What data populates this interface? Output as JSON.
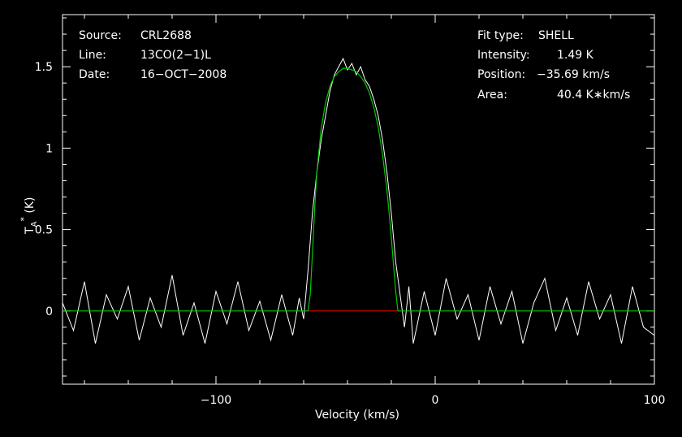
{
  "info_left": {
    "source_label": "Source:",
    "source_value": "CRL2688",
    "line_label": "Line:",
    "line_value": "13CO(2−1)L",
    "date_label": "Date:",
    "date_value": "16−OCT−2008"
  },
  "info_right": {
    "fit_label": "Fit type:",
    "fit_value": "SHELL",
    "intensity_label": "Intensity:",
    "intensity_value": "1.49 K",
    "position_label": "Position:",
    "position_value": "−35.69 km/s",
    "area_label": "Area:",
    "area_value": "40.4 K∗km/s"
  },
  "colors": {
    "spectrum": "#ffffff",
    "fit": "#00c800",
    "baseline": "#e00000",
    "frame": "#ffffff",
    "background": "#000000"
  },
  "chart_data": {
    "type": "line",
    "xlabel": "Velocity (km/s)",
    "ylabel_main": "T",
    "ylabel_sub": "A",
    "ylabel_sup": "*",
    "ylabel_unit": " (K)",
    "xlim": [
      -170,
      100
    ],
    "ylim": [
      -0.45,
      1.82
    ],
    "xticks": [
      -100,
      0,
      100
    ],
    "xtick_labels": [
      "−100",
      "0",
      "100"
    ],
    "yticks": [
      0,
      0.5,
      1,
      1.5
    ],
    "ytick_labels": [
      "0",
      "0.5",
      "1",
      "1.5"
    ],
    "series": [
      {
        "role": "spectrum",
        "x": [
          -170,
          -165,
          -160,
          -155,
          -150,
          -145,
          -140,
          -135,
          -130,
          -125,
          -120,
          -115,
          -110,
          -105,
          -100,
          -95,
          -90,
          -85,
          -80,
          -75,
          -70,
          -65,
          -62,
          -60,
          -58,
          -56,
          -54,
          -52,
          -50,
          -48,
          -46,
          -44,
          -42,
          -40,
          -38,
          -36,
          -34,
          -32,
          -30,
          -28,
          -26,
          -24,
          -22,
          -20,
          -18,
          -16,
          -14,
          -12,
          -10,
          -5,
          0,
          5,
          10,
          15,
          20,
          25,
          30,
          35,
          40,
          45,
          50,
          55,
          60,
          65,
          70,
          75,
          80,
          85,
          90,
          95,
          100
        ],
        "y": [
          0.05,
          -0.12,
          0.18,
          -0.2,
          0.1,
          -0.05,
          0.15,
          -0.18,
          0.08,
          -0.1,
          0.22,
          -0.15,
          0.05,
          -0.2,
          0.12,
          -0.08,
          0.18,
          -0.12,
          0.06,
          -0.18,
          0.1,
          -0.15,
          0.08,
          -0.05,
          0.25,
          0.6,
          0.85,
          1.05,
          1.2,
          1.35,
          1.45,
          1.5,
          1.55,
          1.48,
          1.52,
          1.45,
          1.5,
          1.42,
          1.38,
          1.3,
          1.2,
          1.05,
          0.85,
          0.6,
          0.3,
          0.1,
          -0.1,
          0.15,
          -0.2,
          0.12,
          -0.15,
          0.2,
          -0.05,
          0.1,
          -0.18,
          0.15,
          -0.08,
          0.12,
          -0.2,
          0.05,
          0.2,
          -0.12,
          0.08,
          -0.15,
          0.18,
          -0.05,
          0.1,
          -0.2,
          0.15,
          -0.1,
          -0.15
        ]
      },
      {
        "role": "fit",
        "x": [
          -170,
          -58,
          -57,
          -56,
          -55,
          -54,
          -52,
          -50,
          -48,
          -46,
          -44,
          -42,
          -40,
          -38,
          -36,
          -34,
          -32,
          -30,
          -28,
          -26,
          -24,
          -22,
          -21,
          -20,
          -19,
          -18,
          -17,
          100
        ],
        "y": [
          0,
          0,
          0.1,
          0.35,
          0.62,
          0.85,
          1.12,
          1.28,
          1.38,
          1.44,
          1.47,
          1.49,
          1.49,
          1.48,
          1.47,
          1.44,
          1.4,
          1.34,
          1.25,
          1.13,
          0.96,
          0.74,
          0.6,
          0.45,
          0.28,
          0.12,
          0,
          0
        ]
      },
      {
        "role": "baseline",
        "x": [
          -58,
          -17
        ],
        "y": [
          0,
          0
        ]
      }
    ]
  }
}
